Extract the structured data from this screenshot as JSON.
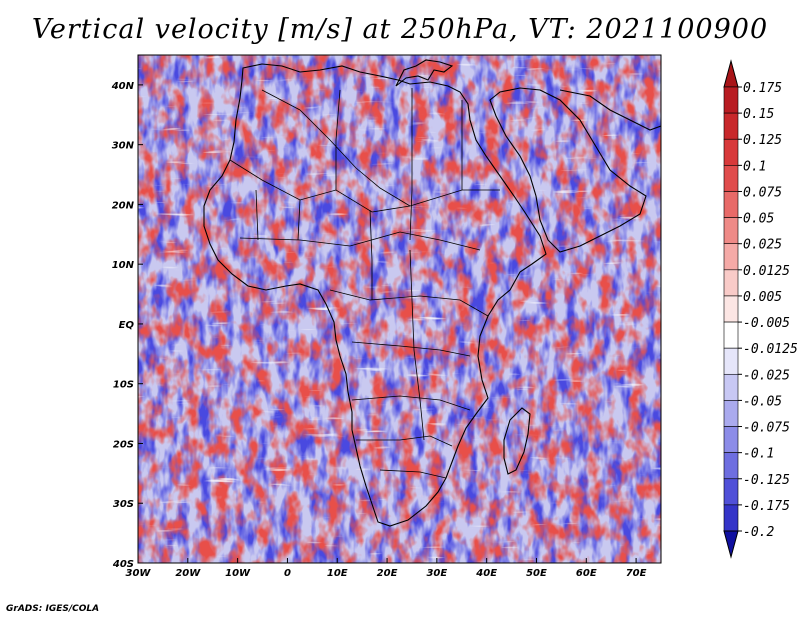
{
  "title": "Vertical velocity [m/s] at 250hPa, VT: 2021100900",
  "credit": "GrADS: IGES/COLA",
  "map": {
    "lon_range": [
      -30,
      75
    ],
    "lat_range": [
      -40,
      45
    ],
    "lon_ticks": [
      {
        "value": -30,
        "label": "30W"
      },
      {
        "value": -20,
        "label": "20W"
      },
      {
        "value": -10,
        "label": "10W"
      },
      {
        "value": 0,
        "label": "0"
      },
      {
        "value": 10,
        "label": "10E"
      },
      {
        "value": 20,
        "label": "20E"
      },
      {
        "value": 30,
        "label": "30E"
      },
      {
        "value": 40,
        "label": "40E"
      },
      {
        "value": 50,
        "label": "50E"
      },
      {
        "value": 60,
        "label": "60E"
      },
      {
        "value": 70,
        "label": "70E"
      }
    ],
    "lat_ticks": [
      {
        "value": 40,
        "label": "40N"
      },
      {
        "value": 30,
        "label": "30N"
      },
      {
        "value": 20,
        "label": "20N"
      },
      {
        "value": 10,
        "label": "10N"
      },
      {
        "value": 0,
        "label": "EQ"
      },
      {
        "value": -10,
        "label": "10S"
      },
      {
        "value": -20,
        "label": "20S"
      },
      {
        "value": -30,
        "label": "30S"
      },
      {
        "value": -40,
        "label": "40S"
      }
    ],
    "field_colors": {
      "positive": "#e8504a",
      "negative": "#4a4ae0",
      "neutral": "#ffffff"
    }
  },
  "colorbar": {
    "levels": [
      {
        "label": "0.175",
        "color": "#b81c22"
      },
      {
        "label": "0.15",
        "color": "#c8282b"
      },
      {
        "label": "0.125",
        "color": "#d8393a"
      },
      {
        "label": "0.1",
        "color": "#e04c4c"
      },
      {
        "label": "0.075",
        "color": "#e86a68"
      },
      {
        "label": "0.05",
        "color": "#ef8a87"
      },
      {
        "label": "0.025",
        "color": "#f5aaa7"
      },
      {
        "label": "0.0125",
        "color": "#f9cbc8"
      },
      {
        "label": "0.005",
        "color": "#fce6e4"
      },
      {
        "label": "-0.005",
        "color": "#ffffff"
      },
      {
        "label": "-0.0125",
        "color": "#e6e6fa"
      },
      {
        "label": "-0.025",
        "color": "#c8c8f4"
      },
      {
        "label": "-0.05",
        "color": "#aaaaee"
      },
      {
        "label": "-0.075",
        "color": "#8c8ce8"
      },
      {
        "label": "-0.1",
        "color": "#6e6ee0"
      },
      {
        "label": "-0.125",
        "color": "#5050d8"
      },
      {
        "label": "-0.175",
        "color": "#3434c8"
      },
      {
        "label": "-0.2",
        "color": "#2020b4"
      }
    ],
    "top_color": "#a81418",
    "bottom_color": "#1010a0"
  }
}
